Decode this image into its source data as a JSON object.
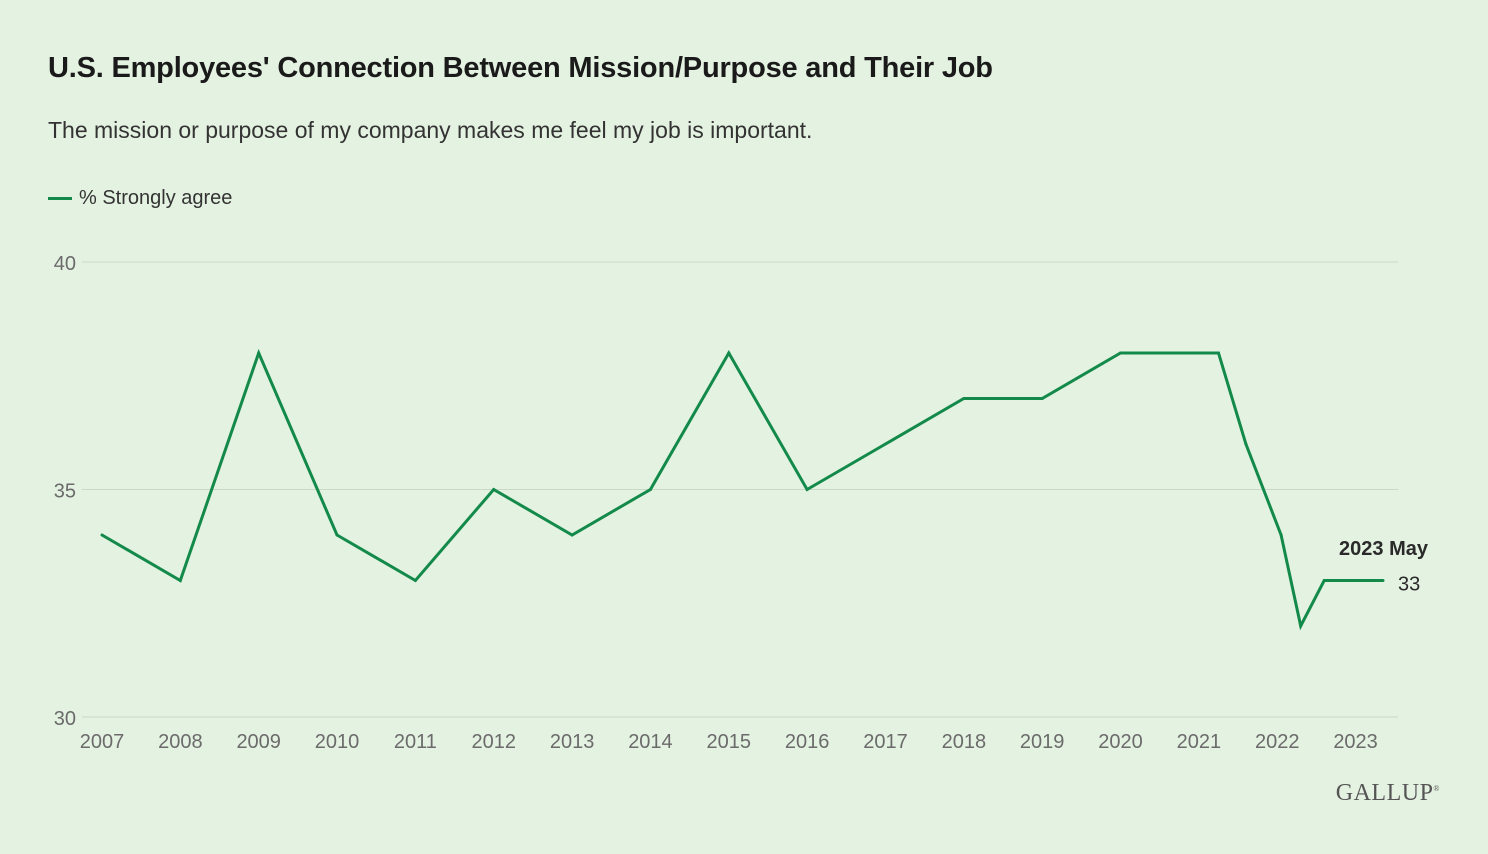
{
  "header": {
    "title": "U.S. Employees' Connection Between Mission/Purpose and Their Job",
    "subtitle": "The mission or purpose of my company makes me feel my job is important."
  },
  "legend": {
    "label": "% Strongly agree"
  },
  "logo": {
    "text": "GALLUP",
    "mark": "®"
  },
  "colors": {
    "line": "#138a4a",
    "grid": "#c9d9c6",
    "background": "#e4f2e1",
    "tick_text": "#6b6b6b"
  },
  "chart_data": {
    "type": "line",
    "title": "U.S. Employees' Connection Between Mission/Purpose and Their Job",
    "subtitle": "The mission or purpose of my company makes me feel my job is important.",
    "xlabel": "",
    "ylabel": "",
    "xlim": [
      2007,
      2023.35
    ],
    "ylim": [
      30,
      40
    ],
    "y_ticks": [
      30,
      35,
      40
    ],
    "x_ticks": [
      2007,
      2008,
      2009,
      2010,
      2011,
      2012,
      2013,
      2014,
      2015,
      2016,
      2017,
      2018,
      2019,
      2020,
      2021,
      2022,
      2023
    ],
    "grid": true,
    "legend_position": "top-left",
    "series": [
      {
        "name": "% Strongly agree",
        "x": [
          2007,
          2008,
          2009,
          2010,
          2011,
          2012,
          2013,
          2014,
          2015,
          2016,
          2017,
          2018,
          2019,
          2020,
          2021,
          2021.25,
          2021.6,
          2022.05,
          2022.3,
          2022.6,
          2022.9,
          2023.35
        ],
        "values": [
          34,
          33,
          38,
          34,
          33,
          35,
          34,
          35,
          38,
          35,
          36,
          37,
          37,
          38,
          38,
          38,
          36,
          34,
          32,
          33,
          33,
          33
        ]
      }
    ],
    "annotation": {
      "label": "2023 May",
      "value": "33"
    }
  }
}
